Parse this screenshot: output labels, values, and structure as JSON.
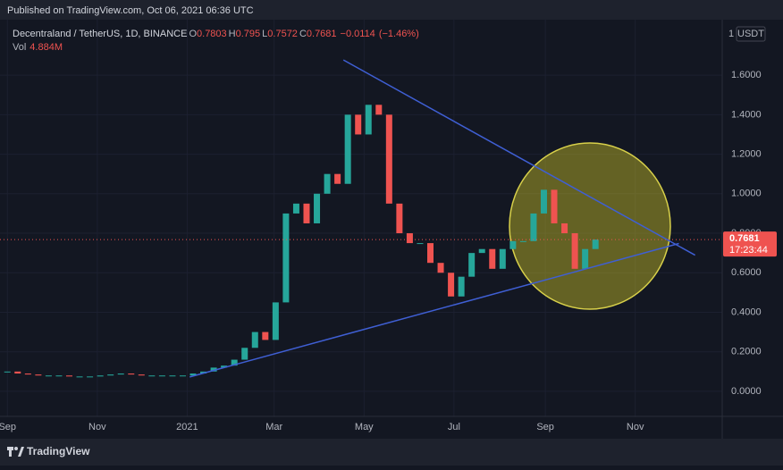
{
  "header": {
    "published": "Published on TradingView.com, Oct 06, 2021 06:36 UTC"
  },
  "footer": {
    "brand": "TradingView"
  },
  "chart_data": {
    "type": "candlestick",
    "symbol": "Decentraland / TetherUS, 1D, BINANCE",
    "ohlc": [
      {
        "name": "O",
        "value": 0.7803
      },
      {
        "name": "H",
        "value": 0.795
      },
      {
        "name": "L",
        "value": 0.7572
      },
      {
        "name": "C",
        "value": 0.7681
      }
    ],
    "change": {
      "value": -0.0114,
      "label": "−0.0114"
    },
    "change_pct": {
      "value": -1.46,
      "label": "(−1.46%)"
    },
    "volume": {
      "name": "Vol",
      "value": 4884000,
      "label": "4.884M"
    },
    "currency": "USDT",
    "scale_mode": "1",
    "countdown": "17:23:44",
    "up_color": "#26a69a",
    "down_color": "#ef5350",
    "grid": true,
    "xlim": [
      -5,
      485
    ],
    "ylim": [
      -0.127,
      1.881
    ],
    "xticks": [
      {
        "value": 0,
        "label": "Sep"
      },
      {
        "value": 61,
        "label": "Nov"
      },
      {
        "value": 122,
        "label": "2021"
      },
      {
        "value": 181,
        "label": "Mar"
      },
      {
        "value": 242,
        "label": "May"
      },
      {
        "value": 303,
        "label": "Jul"
      },
      {
        "value": 365,
        "label": "Sep"
      },
      {
        "value": 426,
        "label": "Nov"
      }
    ],
    "yticks": [
      {
        "value": 0,
        "label": "0.0000"
      },
      {
        "value": 0.2,
        "label": "0.2000"
      },
      {
        "value": 0.4,
        "label": "0.4000"
      },
      {
        "value": 0.6,
        "label": "0.6000"
      },
      {
        "value": 0.8,
        "label": "0.8000"
      },
      {
        "value": 1.0,
        "label": "1.0000"
      },
      {
        "value": 1.2,
        "label": "1.2000"
      },
      {
        "value": 1.4,
        "label": "1.4000"
      },
      {
        "value": 1.6,
        "label": "1.6000"
      }
    ],
    "series": [
      {
        "name": "Close",
        "x": [
          0,
          7,
          14,
          21,
          28,
          35,
          42,
          49,
          56,
          63,
          70,
          77,
          84,
          91,
          98,
          105,
          112,
          119,
          126,
          133,
          140,
          147,
          154,
          161,
          168,
          175,
          182,
          189,
          196,
          203,
          210,
          217,
          224,
          231,
          238,
          245,
          252,
          259,
          266,
          273,
          280,
          287,
          294,
          301,
          308,
          315,
          322,
          329,
          336,
          343,
          350,
          357,
          364,
          371,
          378,
          385,
          392,
          399
        ],
        "values": [
          0.1,
          0.09,
          0.085,
          0.08,
          0.08,
          0.08,
          0.075,
          0.075,
          0.075,
          0.08,
          0.085,
          0.09,
          0.085,
          0.08,
          0.08,
          0.08,
          0.08,
          0.08,
          0.09,
          0.1,
          0.12,
          0.13,
          0.16,
          0.22,
          0.3,
          0.26,
          0.45,
          0.9,
          0.95,
          0.85,
          1.0,
          1.1,
          1.05,
          1.4,
          1.3,
          1.45,
          1.4,
          0.95,
          0.8,
          0.75,
          0.75,
          0.65,
          0.6,
          0.48,
          0.58,
          0.7,
          0.72,
          0.62,
          0.72,
          0.76,
          0.76,
          0.9,
          1.02,
          0.85,
          0.8,
          0.62,
          0.72,
          0.7681
        ]
      }
    ],
    "trendlines": [
      {
        "color": "#3f5fd4",
        "x": [
          228,
          466.6
        ],
        "values": [
          1.677,
          0.689
        ]
      },
      {
        "color": "#3f5fd4",
        "x": [
          123.7,
          455.6
        ],
        "values": [
          0.0725,
          0.748
        ]
      }
    ]
  }
}
